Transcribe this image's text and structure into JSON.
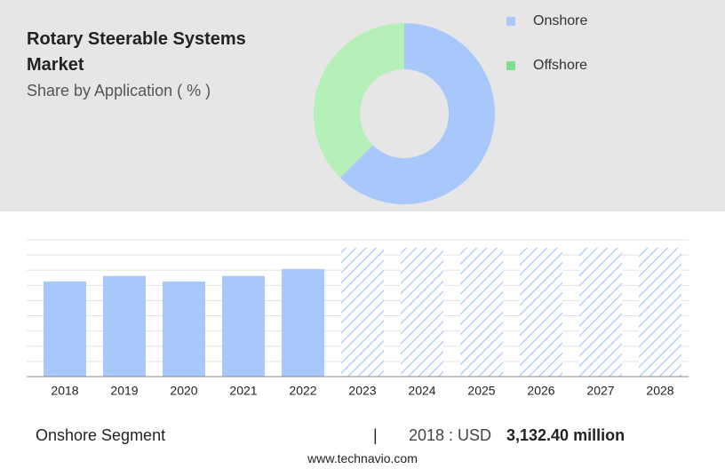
{
  "header": {
    "title": "Rotary Steerable Systems Market",
    "subtitle": "Share by Application ( % )"
  },
  "chart_data": [
    {
      "type": "pie",
      "donut": true,
      "categories": [
        "Onshore",
        "Offshore"
      ],
      "values": [
        62.5,
        37.5
      ],
      "colors": [
        "#a8c8fb",
        "#b5f0b8"
      ],
      "legend_colors": [
        "#a8c8fb",
        "#7ee08e"
      ],
      "legend": "top-right"
    },
    {
      "type": "bar",
      "categories": [
        "2018",
        "2019",
        "2020",
        "2021",
        "2022",
        "2023",
        "2024",
        "2025",
        "2026",
        "2027",
        "2028"
      ],
      "values": [
        3132.4,
        3310,
        3130,
        3310,
        3540,
        4240,
        4240,
        4240,
        4240,
        4240,
        4240
      ],
      "hatched": [
        false,
        false,
        false,
        false,
        false,
        true,
        true,
        true,
        true,
        true,
        true
      ],
      "color": "#a8c8fb",
      "hatch_color": "#a8c8fb",
      "ylim": [
        0,
        4500
      ],
      "yticks": [
        0,
        500,
        1000,
        1500,
        2000,
        2500,
        3000,
        3500,
        4000,
        4500
      ],
      "grid": true
    }
  ],
  "footer": {
    "segment": "Onshore Segment",
    "separator": "|",
    "year": "2018 : USD",
    "value": "3,132.40 million",
    "source": "www.technavio.com"
  }
}
